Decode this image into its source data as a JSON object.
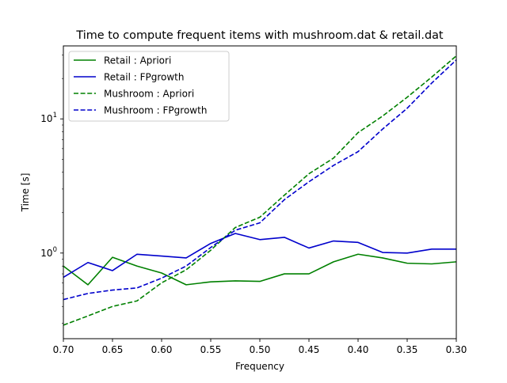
{
  "chart_data": {
    "type": "line",
    "title": "Time to compute frequent items with mushroom.dat & retail.dat",
    "xlabel": "Frequency",
    "ylabel": "Time [s]",
    "x_inverted": true,
    "xlim": [
      0.7,
      0.3
    ],
    "x_ticks": [
      0.7,
      0.65,
      0.6,
      0.55,
      0.5,
      0.45,
      0.4,
      0.35,
      0.3
    ],
    "x_tick_labels": [
      "0.70",
      "0.65",
      "0.60",
      "0.55",
      "0.50",
      "0.45",
      "0.40",
      "0.35",
      "0.30"
    ],
    "y_scale": "log",
    "ylim": [
      0.23,
      35
    ],
    "y_major_ticks": [
      {
        "value": 1,
        "base": "10",
        "exp": "0"
      },
      {
        "value": 10,
        "base": "10",
        "exp": "1"
      }
    ],
    "grid": false,
    "legend_position": "top-left",
    "x": [
      0.7,
      0.675,
      0.65,
      0.625,
      0.6,
      0.575,
      0.55,
      0.525,
      0.5,
      0.475,
      0.45,
      0.425,
      0.4,
      0.375,
      0.35,
      0.325,
      0.3
    ],
    "series": [
      {
        "name": "Retail : Apriori",
        "color": "#008000",
        "dash": "solid",
        "values": [
          0.8,
          0.58,
          0.93,
          0.8,
          0.71,
          0.58,
          0.61,
          0.62,
          0.615,
          0.7,
          0.7,
          0.86,
          0.98,
          0.92,
          0.84,
          0.83,
          0.86
        ]
      },
      {
        "name": "Retail : FPgrowth",
        "color": "#0000cc",
        "dash": "solid",
        "values": [
          0.66,
          0.85,
          0.74,
          0.98,
          0.95,
          0.92,
          1.18,
          1.4,
          1.26,
          1.31,
          1.09,
          1.23,
          1.2,
          1.01,
          1.0,
          1.07,
          1.07
        ]
      },
      {
        "name": "Mushroom : Apriori",
        "color": "#008000",
        "dash": "dashed",
        "values": [
          0.29,
          0.34,
          0.4,
          0.44,
          0.6,
          0.75,
          1.05,
          1.55,
          1.85,
          2.7,
          3.9,
          5.1,
          7.9,
          10.5,
          14.5,
          20.5,
          29.5
        ]
      },
      {
        "name": "Mushroom : FPgrowth",
        "color": "#0000cc",
        "dash": "dashed",
        "values": [
          0.45,
          0.5,
          0.53,
          0.55,
          0.65,
          0.8,
          1.1,
          1.48,
          1.68,
          2.5,
          3.4,
          4.5,
          5.7,
          8.4,
          12.0,
          18.5,
          27.5
        ]
      }
    ]
  }
}
